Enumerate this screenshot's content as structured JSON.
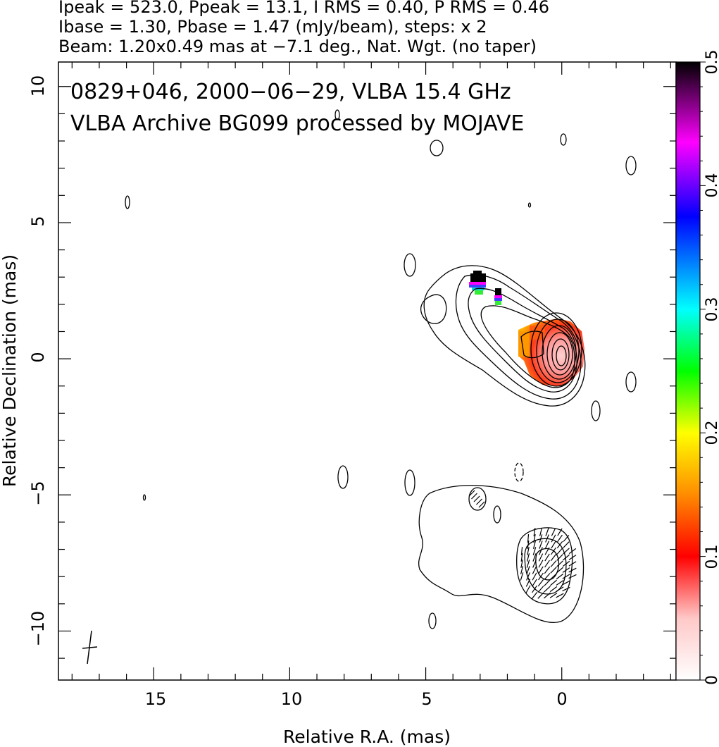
{
  "header": {
    "line1": "Ipeak = 523.0, Ppeak = 13.1, I RMS = 0.40, P RMS = 0.46",
    "line2": "Ibase = 1.30, Pbase = 1.47 (mJy/beam), steps: x 2",
    "line3": "Beam: 1.20x0.49 mas at −7.1 deg., Nat. Wgt. (no taper)"
  },
  "panel": {
    "title1": "0829+046, 2000−06−29, VLBA 15.4 GHz",
    "title2": "VLBA Archive BG099 processed by MOJAVE"
  },
  "axes": {
    "xlabel": "Relative R.A. (mas)",
    "ylabel": "Relative Declination (mas)"
  },
  "colorbar": {
    "ticks": [
      "0",
      "0.1",
      "0.2",
      "0.3",
      "0.4",
      "0.5"
    ],
    "range": [
      0,
      0.5
    ],
    "colors": [
      "#ffffff",
      "#ffc8c8",
      "#ff0000",
      "#ff8c00",
      "#ffff00",
      "#00ff00",
      "#00ffff",
      "#0000ff",
      "#ff00ff",
      "#000000"
    ]
  },
  "chart_data": {
    "type": "heatmap",
    "title": "0829+046, 2000−06−29, VLBA 15.4 GHz",
    "subtitle": "VLBA Archive BG099 processed by MOJAVE",
    "xlabel": "Relative R.A. (mas)",
    "ylabel": "Relative Declination (mas)",
    "xlim": [
      18.5,
      -4.2
    ],
    "ylim": [
      -11.8,
      10.9
    ],
    "x_ticks": [
      "15",
      "10",
      "5",
      "0"
    ],
    "y_ticks": [
      "−10",
      "−5",
      "0",
      "5",
      "10"
    ],
    "x_direction": "reversed",
    "grid": false,
    "colorbar_label_ticks": [
      0,
      0.1,
      0.2,
      0.3,
      0.4,
      0.5
    ],
    "core_position_mas": [
      0,
      0
    ],
    "jet_direction": "north-east toward R.A. 4, Dec 2.5",
    "secondary_component_center_mas": [
      0.6,
      -7.6
    ],
    "ipeak_mJy_per_beam": 523.0,
    "ppeak_mJy_per_beam": 13.1,
    "contour_step_factor": 2,
    "beam": {
      "major_mas": 1.2,
      "minor_mas": 0.49,
      "pa_deg": -7.1
    }
  }
}
